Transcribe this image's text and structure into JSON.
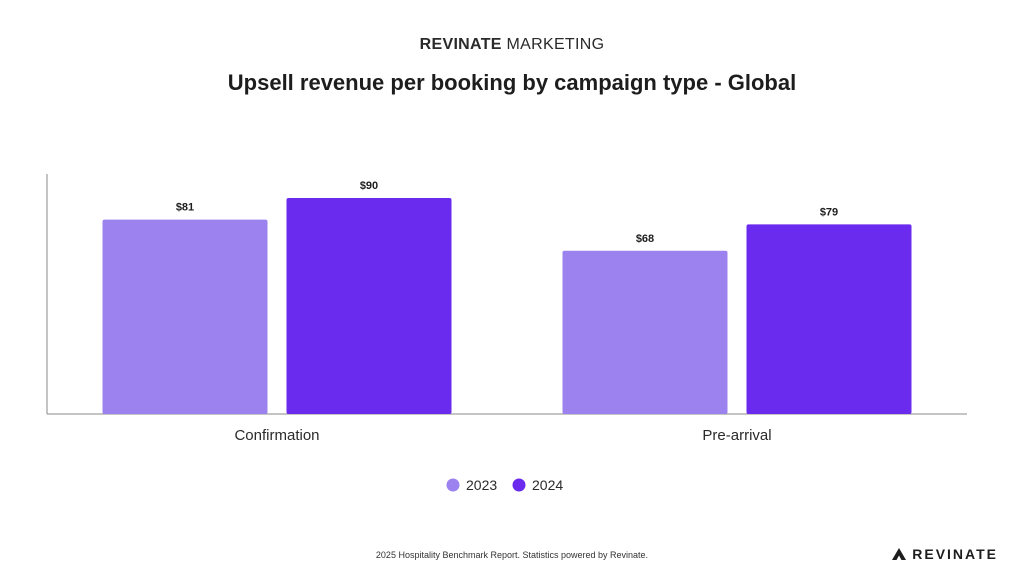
{
  "header": {
    "brand_strong": "REVINATE",
    "brand_rest": "MARKETING"
  },
  "chart_data": {
    "type": "bar",
    "title": "Upsell revenue per booking by campaign type - Global",
    "categories": [
      "Confirmation",
      "Pre-arrival"
    ],
    "series": [
      {
        "name": "2023",
        "values": [
          81,
          68
        ],
        "labels": [
          "$81",
          "$68"
        ],
        "color": "#9b82ee"
      },
      {
        "name": "2024",
        "values": [
          90,
          79
        ],
        "labels": [
          "$90",
          "$79"
        ],
        "color": "#6a2bee"
      }
    ],
    "ylim": [
      0,
      100
    ],
    "grid": false,
    "legend": "bottom-center"
  },
  "footer": {
    "note": "2025 Hospitality Benchmark Report. Statistics powered by Revinate.",
    "logo_text": "REVINATE"
  }
}
